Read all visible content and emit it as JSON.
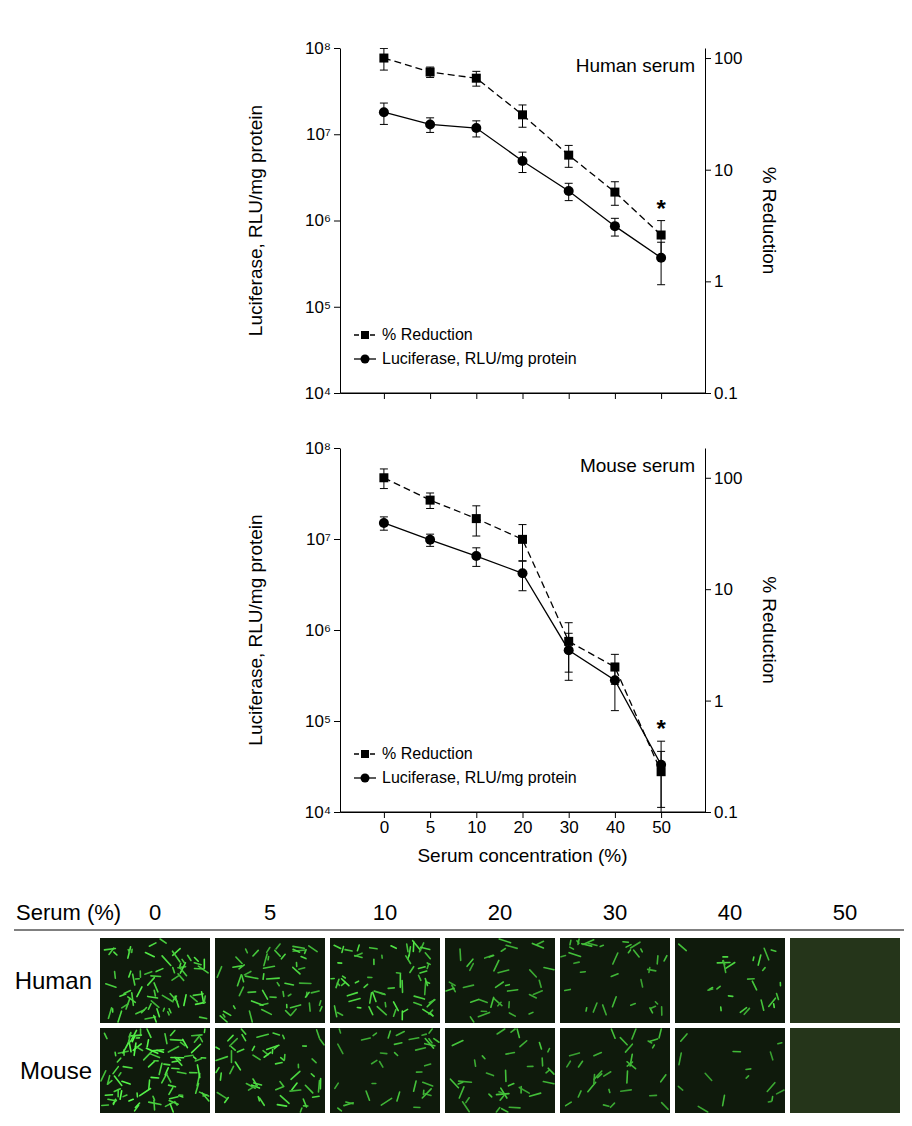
{
  "chart_data": [
    {
      "type": "line",
      "title": "Human serum",
      "categories": [
        null,
        null,
        null,
        null,
        null,
        null,
        null
      ],
      "ylabel": "Luciferase, RLU/mg protein",
      "y2label": "% Reduction",
      "log": "y",
      "legend": "lower left",
      "ylim": [
        10000,
        100000000
      ],
      "yticks": [
        {
          "value": 10000,
          "label": "10⁴"
        },
        {
          "value": 100000,
          "label": "10⁵"
        },
        {
          "value": 1000000,
          "label": "10⁶"
        },
        {
          "value": 10000000,
          "label": "10⁷"
        },
        {
          "value": 100000000,
          "label": "10⁸"
        }
      ],
      "y2lim": [
        0.1,
        123
      ],
      "y2ticks": [
        0.1,
        1,
        10,
        100
      ],
      "series": [
        {
          "name": "% Reduction",
          "axis": "y2",
          "color": "#000000",
          "marker": "square",
          "line_style": "dashed",
          "values": [
            100,
            75,
            66,
            31,
            13.5,
            6.3,
            2.6
          ],
          "errors": [
            22,
            8,
            10,
            7,
            3,
            1.5,
            0.9
          ]
        },
        {
          "name": "Luciferase, RLU/mg protein",
          "color": "#000000",
          "marker": "circle",
          "line_style": "solid",
          "values": [
            18000000,
            13000000,
            11800000,
            4900000,
            2200000,
            860000,
            370000
          ],
          "errors": [
            5000000,
            2500000,
            2500000,
            1300000,
            500000,
            200000,
            190000
          ]
        }
      ],
      "annotations": [
        {
          "text": "*",
          "x": 6
        }
      ]
    },
    {
      "type": "line",
      "title": "Mouse serum",
      "categories": [
        "0",
        "5",
        "10",
        "20",
        "30",
        "40",
        "50"
      ],
      "xlabel": "Serum concentration (%)",
      "ylabel": "Luciferase, RLU/mg protein",
      "y2label": "% Reduction",
      "log": "y",
      "legend": "lower left",
      "ylim": [
        10000,
        100000000
      ],
      "yticks": [
        {
          "value": 10000,
          "label": "10⁴"
        },
        {
          "value": 100000,
          "label": "10⁵"
        },
        {
          "value": 1000000,
          "label": "10⁶"
        },
        {
          "value": 10000000,
          "label": "10⁷"
        },
        {
          "value": 100000000,
          "label": "10⁸"
        }
      ],
      "y2lim": [
        0.1,
        185
      ],
      "y2ticks": [
        0.1,
        1,
        10,
        100
      ],
      "series": [
        {
          "name": "% Reduction",
          "axis": "y2",
          "color": "#000000",
          "marker": "square",
          "line_style": "dashed",
          "values": [
            100,
            63,
            43,
            28,
            3.4,
            2.0,
            0.23
          ],
          "errors": [
            20,
            10,
            13,
            10,
            1.6,
            0.6,
            0.12
          ]
        },
        {
          "name": "Luciferase, RLU/mg protein",
          "color": "#000000",
          "marker": "circle",
          "line_style": "solid",
          "values": [
            15000000,
            9800000,
            6500000,
            4200000,
            600000,
            280000,
            33000
          ],
          "errors": [
            2500000,
            1500000,
            1500000,
            1500000,
            320000,
            150000,
            27000
          ]
        }
      ],
      "annotations": [
        {
          "text": "*",
          "x": 6
        }
      ]
    }
  ],
  "image_grid": {
    "header": "Serum (%)",
    "columns": [
      "0",
      "5",
      "10",
      "20",
      "30",
      "40",
      "50"
    ],
    "rows": [
      "Human",
      "Mouse"
    ]
  }
}
